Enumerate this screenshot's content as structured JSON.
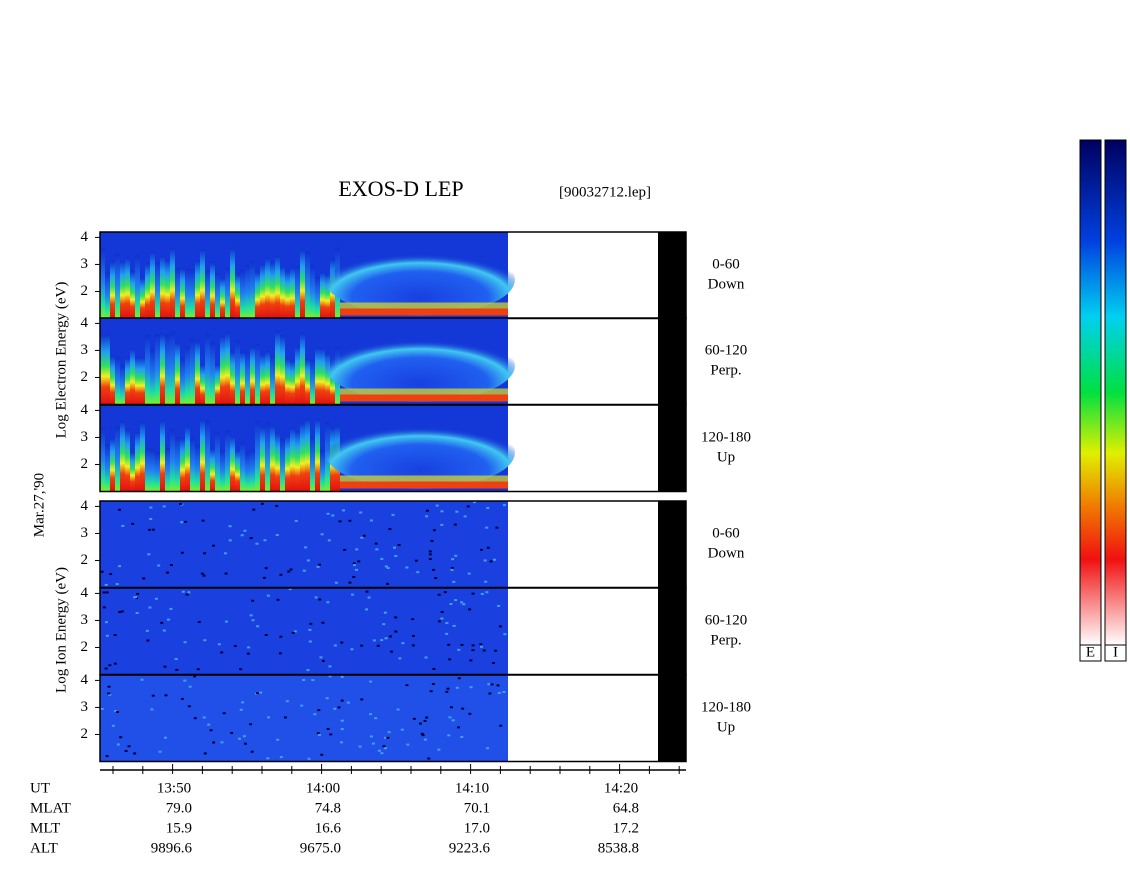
{
  "title": "EXOS-D LEP",
  "file": "[90032712.lep]",
  "date_label": "Mar.27,'90",
  "electron_axis_label": "Log  Electron  Energy  (eV)",
  "ion_axis_label": "Log  Ion  Energy  (eV)",
  "ylim": [
    1,
    4.2
  ],
  "yticks": [
    2,
    3,
    4
  ],
  "electron_panels": [
    {
      "range": "0-60",
      "direction": "Down"
    },
    {
      "range": "60-120",
      "direction": "Perp."
    },
    {
      "range": "120-180",
      "direction": "Up"
    }
  ],
  "ion_panels": [
    {
      "range": "0-60",
      "direction": "Down"
    },
    {
      "range": "60-120",
      "direction": "Perp."
    },
    {
      "range": "120-180",
      "direction": "Up"
    }
  ],
  "ephemeris": [
    {
      "name": "UT",
      "values": [
        "13:50",
        "14:00",
        "14:10",
        "14:20"
      ]
    },
    {
      "name": "MLAT",
      "values": [
        "79.0",
        "74.8",
        "70.1",
        "64.8"
      ]
    },
    {
      "name": "MLT",
      "values": [
        "15.9",
        "16.6",
        "17.0",
        "17.2"
      ]
    },
    {
      "name": "ALT",
      "values": [
        "9896.6",
        "9675.0",
        "9223.6",
        "8538.8"
      ]
    }
  ],
  "colorbars": [
    "E",
    "I"
  ]
}
